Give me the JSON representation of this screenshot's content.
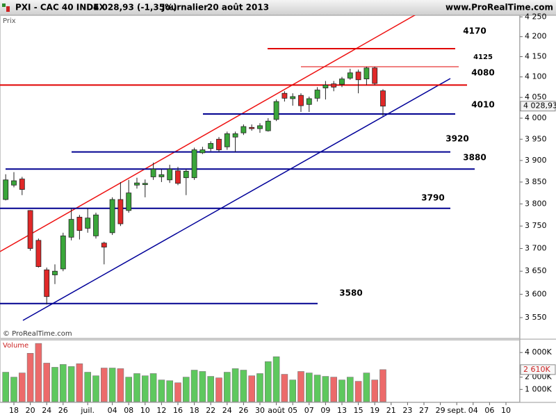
{
  "header": {
    "symbol": "PXI - CAC 40 INDEX",
    "quote": "4 028,93 (-1,35%)",
    "period": "Journalier",
    "date": "20 août 2013",
    "site": "www.ProRealTime.com"
  },
  "chart_data": [
    {
      "type": "candlestick",
      "y_label": "Prix",
      "source": "© ProRealTime.com",
      "log_scale": true,
      "grid": false,
      "up_color": "#3aa63a",
      "down_color": "#e02828",
      "categories": [
        null,
        "18",
        null,
        "20",
        null,
        "24",
        null,
        "26",
        null,
        null,
        "juil.",
        null,
        null,
        "04",
        null,
        "08",
        null,
        "10",
        null,
        "12",
        null,
        "16",
        null,
        "18",
        null,
        "22",
        null,
        "24",
        null,
        "26",
        null,
        "30",
        null,
        "août",
        null,
        "05",
        null,
        "07",
        null,
        "09",
        null,
        "13",
        null,
        "15",
        null,
        "19",
        null,
        "21",
        null,
        "23",
        null,
        "27",
        null,
        "29",
        null,
        "sept.",
        null,
        "04",
        null,
        "06",
        null,
        "10"
      ],
      "open": [
        3810,
        3843,
        3857,
        3785,
        3718,
        3653,
        3642,
        3655,
        3725,
        3770,
        3745,
        3728,
        3712,
        3735,
        3810,
        3785,
        3843,
        3844,
        3862,
        3862,
        3855,
        3876,
        3860,
        3860,
        3918,
        3928,
        3950,
        3932,
        3955,
        3965,
        3978,
        3975,
        3970,
        3997,
        4060,
        4047,
        4055,
        4033,
        4048,
        4073,
        4083,
        4082,
        4097,
        4112,
        4095,
        4122,
        4066,
        null,
        null,
        null,
        null,
        null,
        null,
        null,
        null,
        null,
        null,
        null,
        null,
        null,
        null,
        null
      ],
      "high": [
        3868,
        3873,
        3862,
        3786,
        3722,
        3658,
        3665,
        3735,
        3790,
        3775,
        3790,
        3780,
        3715,
        3815,
        3850,
        3855,
        3860,
        3856,
        3895,
        3880,
        3890,
        3885,
        3880,
        3930,
        3932,
        3945,
        3955,
        3968,
        3968,
        3985,
        3985,
        3988,
        4000,
        4045,
        4065,
        4060,
        4060,
        4052,
        4075,
        4090,
        4090,
        4100,
        4120,
        4118,
        4125,
        4125,
        4070,
        null,
        null,
        null,
        null,
        null,
        null,
        null,
        null,
        null,
        null,
        null,
        null,
        null,
        null,
        null
      ],
      "low": [
        3808,
        3838,
        3820,
        3695,
        3658,
        3578,
        3622,
        3650,
        3718,
        3720,
        3735,
        3722,
        3665,
        3730,
        3750,
        3780,
        3835,
        3815,
        3855,
        3850,
        3848,
        3843,
        3820,
        3855,
        3915,
        3922,
        3920,
        3925,
        3920,
        3960,
        3970,
        3965,
        3968,
        3993,
        4040,
        4030,
        4015,
        4015,
        4040,
        4045,
        4065,
        4075,
        4093,
        4060,
        4080,
        4080,
        4005,
        null,
        null,
        null,
        null,
        null,
        null,
        null,
        null,
        null,
        null,
        null,
        null,
        null,
        null,
        null
      ],
      "close": [
        3855,
        3853,
        3833,
        3700,
        3660,
        3595,
        3650,
        3728,
        3765,
        3740,
        3768,
        3775,
        3703,
        3810,
        3755,
        3825,
        3848,
        3847,
        3880,
        3867,
        3880,
        3847,
        3875,
        3925,
        3925,
        3940,
        3925,
        3963,
        3963,
        3980,
        3975,
        3982,
        3993,
        4040,
        4048,
        4052,
        4030,
        4047,
        4068,
        4080,
        4075,
        4095,
        4110,
        4093,
        4122,
        4084,
        4028.93,
        null,
        null,
        null,
        null,
        null,
        null,
        null,
        null,
        null,
        null,
        null,
        null,
        null,
        null,
        null
      ],
      "ylim": [
        3506,
        4254
      ],
      "yticks": [
        {
          "value": 3550,
          "label": "3 550"
        },
        {
          "value": 3600,
          "label": "3 600"
        },
        {
          "value": 3650,
          "label": "3 650"
        },
        {
          "value": 3700,
          "label": "3 700"
        },
        {
          "value": 3750,
          "label": "3 750"
        },
        {
          "value": 3800,
          "label": "3 800"
        },
        {
          "value": 3850,
          "label": "3 850"
        },
        {
          "value": 3900,
          "label": "3 900"
        },
        {
          "value": 3950,
          "label": "3 950"
        },
        {
          "value": 4000,
          "label": "4 000"
        },
        {
          "value": 4050,
          "label": "4 050"
        },
        {
          "value": 4100,
          "label": "4 100"
        },
        {
          "value": 4150,
          "label": "4 150"
        },
        {
          "value": 4200,
          "label": "4 200"
        },
        {
          "value": 4250,
          "label": "4 250"
        }
      ],
      "levels": [
        {
          "value": 4170,
          "color": "#e00000"
        },
        {
          "value": 4125,
          "color": "#e00000"
        },
        {
          "value": 4080,
          "color": "#e00000"
        },
        {
          "value": 4010,
          "color": "#000090"
        },
        {
          "value": 3920,
          "color": "#000090"
        },
        {
          "value": 3880,
          "color": "#000090"
        },
        {
          "value": 3790,
          "color": "#000090"
        },
        {
          "value": 3580,
          "color": "#000090"
        }
      ],
      "last_price": {
        "value": 4028.93,
        "label": "4 028,93"
      }
    },
    {
      "type": "bar",
      "title": "Volume",
      "up_color": "#5ec85e",
      "down_color": "#ec6a6a",
      "values": [
        2400000,
        2000000,
        2340000,
        3940000,
        4740000,
        3140000,
        2800000,
        3030000,
        2860000,
        3090000,
        2400000,
        2110000,
        2740000,
        2740000,
        2690000,
        2000000,
        2290000,
        2110000,
        2290000,
        1770000,
        1710000,
        1540000,
        2000000,
        2570000,
        2460000,
        2060000,
        1940000,
        2400000,
        2690000,
        2570000,
        2110000,
        2290000,
        3260000,
        3660000,
        2230000,
        1770000,
        2460000,
        2340000,
        2170000,
        2060000,
        2000000,
        1770000,
        2000000,
        1660000,
        2340000,
        1770000,
        2610000,
        null,
        null,
        null,
        null,
        null,
        null,
        null,
        null,
        null,
        null,
        null,
        null,
        null,
        null,
        null
      ],
      "ylim": [
        0,
        5030000
      ],
      "yticks": [
        {
          "value": 1000000,
          "label": "1 000K"
        },
        {
          "value": 2000000,
          "label": "2 000K"
        },
        {
          "value": 4000000,
          "label": "4 000K"
        }
      ],
      "last_value": {
        "value": 2610000,
        "label": "2 610K"
      }
    }
  ]
}
